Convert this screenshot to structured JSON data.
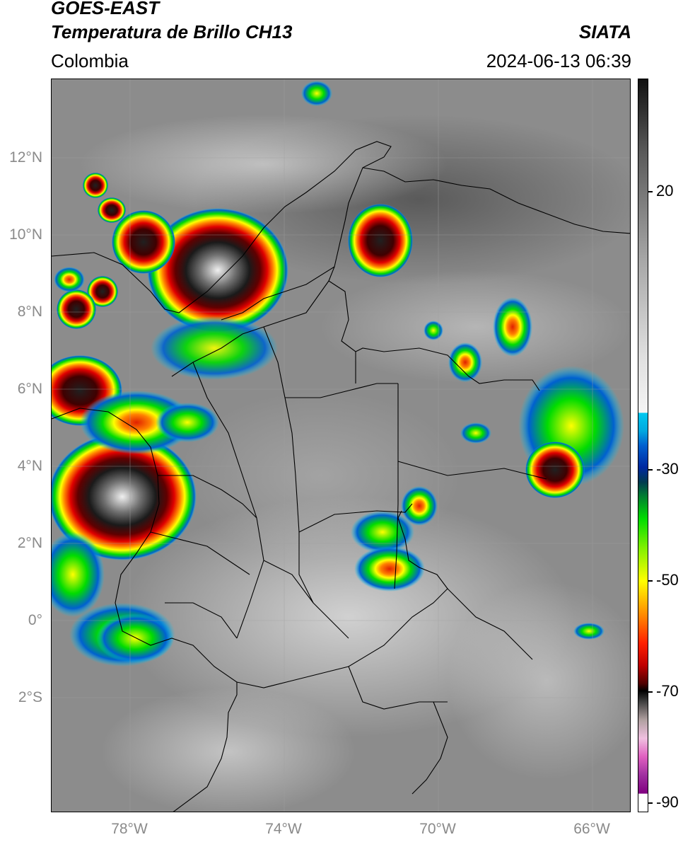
{
  "header": {
    "title_line1": "GOES-EAST",
    "title_line2": "Temperatura de Brillo CH13",
    "region": "Colombia",
    "agency": "SIATA",
    "datetime": "2024-06-13 06:39"
  },
  "map": {
    "latitude_labels": [
      "12°N",
      "10°N",
      "8°N",
      "6°N",
      "4°N",
      "2°N",
      "0°",
      "2°S"
    ],
    "longitude_labels": [
      "78°W",
      "74°W",
      "70°W",
      "66°W"
    ],
    "background_color": "#8a8a8a",
    "border_color": "#000000"
  },
  "colorbar": {
    "labels": [
      "20",
      "-30",
      "-50",
      "-70",
      "-90"
    ],
    "units_hint": "",
    "colors": {
      "gray_top": "#111111",
      "gray_light": "#f2f2f2",
      "cyan": "#00c8f0",
      "blue": "#0028a0",
      "green": "#00dc00",
      "yellow": "#ffff00",
      "orange": "#ff8000",
      "red": "#e00000",
      "dark_red": "#500000",
      "black": "#000000",
      "pink": "#e060c0",
      "purple": "#800080",
      "white": "#ffffff"
    }
  }
}
